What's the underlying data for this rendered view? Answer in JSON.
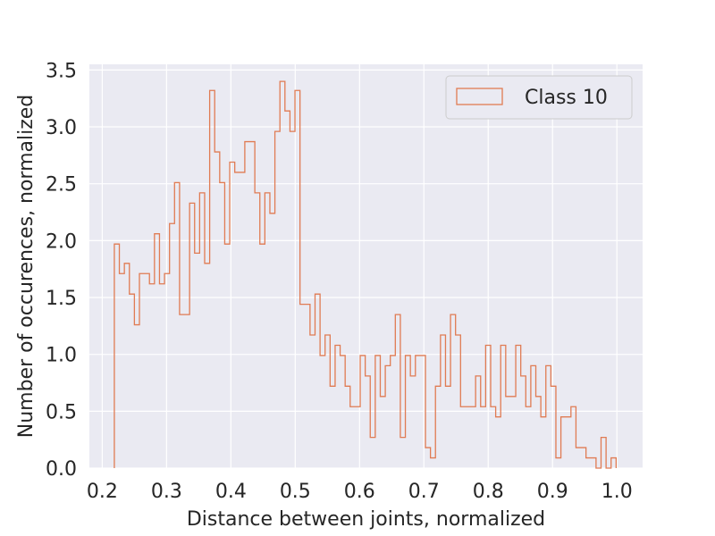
{
  "chart_data": {
    "type": "histogram-step",
    "xlabel": "Distance between joints, normalized",
    "ylabel": "Number of occurences, normalized",
    "xlim": [
      0.18,
      1.04
    ],
    "ylim": [
      0.0,
      3.55
    ],
    "xticks": [
      0.2,
      0.3,
      0.4,
      0.5,
      0.6,
      0.7,
      0.8,
      0.9,
      1.0
    ],
    "xtick_labels": [
      "0.2",
      "0.3",
      "0.4",
      "0.5",
      "0.6",
      "0.7",
      "0.8",
      "0.9",
      "1.0"
    ],
    "yticks": [
      0.0,
      0.5,
      1.0,
      1.5,
      2.0,
      2.5,
      3.0,
      3.5
    ],
    "ytick_labels": [
      "0.0",
      "0.5",
      "1.0",
      "1.5",
      "2.0",
      "2.5",
      "3.0",
      "3.5"
    ],
    "grid": true,
    "legend_position": "top-right",
    "colors": {
      "background": "#eaeaf2",
      "grid": "#ffffff",
      "series": "#e07b53"
    },
    "series": [
      {
        "name": "Class 10",
        "bin_start": 0.2188,
        "bin_width": 0.0078,
        "values": [
          1.97,
          1.71,
          1.8,
          1.53,
          1.26,
          1.71,
          1.71,
          1.62,
          2.06,
          1.62,
          1.71,
          2.15,
          2.51,
          1.35,
          1.35,
          2.33,
          1.89,
          2.42,
          1.8,
          3.32,
          2.78,
          2.51,
          1.97,
          2.69,
          2.6,
          2.6,
          2.87,
          2.87,
          2.42,
          1.97,
          2.42,
          2.24,
          2.96,
          3.4,
          3.14,
          2.96,
          3.32,
          1.44,
          1.44,
          1.17,
          1.53,
          0.99,
          1.17,
          0.72,
          1.08,
          0.99,
          0.72,
          0.54,
          0.54,
          0.99,
          0.81,
          0.27,
          0.99,
          0.63,
          0.9,
          0.99,
          1.35,
          0.27,
          0.99,
          0.81,
          0.99,
          0.99,
          0.18,
          0.09,
          0.72,
          1.17,
          0.72,
          1.35,
          1.17,
          0.54,
          0.54,
          0.54,
          0.81,
          0.54,
          1.08,
          0.54,
          0.45,
          1.08,
          0.63,
          0.63,
          1.08,
          0.81,
          0.54,
          0.9,
          0.63,
          0.45,
          0.9,
          0.72,
          0.09,
          0.45,
          0.45,
          0.54,
          0.18,
          0.18,
          0.09,
          0.09,
          0.0,
          0.27,
          0.0,
          0.09
        ]
      }
    ]
  }
}
